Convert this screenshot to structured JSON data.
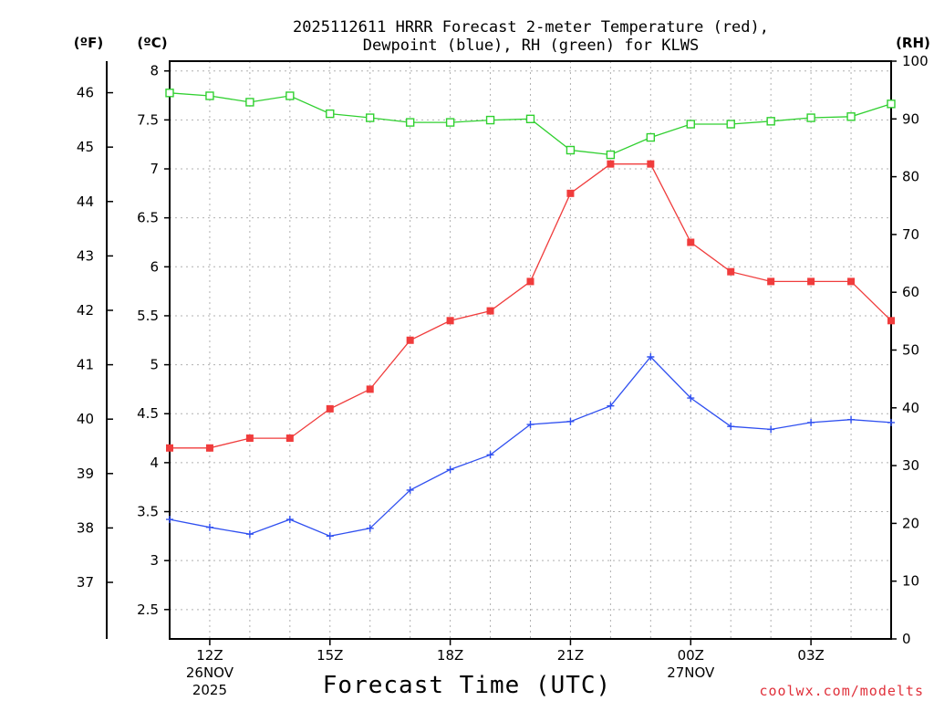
{
  "chart_data": {
    "type": "line",
    "title_line1": "2025112611 HRRR Forecast 2-meter Temperature (red),",
    "title_line2": "Dewpoint (blue), RH (green) for KLWS",
    "xlabel": "Forecast Time (UTC)",
    "unit_f": "(ºF)",
    "unit_c": "(ºC)",
    "unit_rh": "(RH)",
    "x_hours": [
      11,
      12,
      13,
      14,
      15,
      16,
      17,
      18,
      19,
      20,
      21,
      22,
      23,
      24,
      25,
      26,
      27,
      28,
      29
    ],
    "xlim": [
      11,
      29
    ],
    "x_ticks": [
      {
        "hour": 12,
        "label": "12Z",
        "date": "26NOV",
        "year": "2025"
      },
      {
        "hour": 15,
        "label": "15Z",
        "date": "",
        "year": ""
      },
      {
        "hour": 18,
        "label": "18Z",
        "date": "",
        "year": ""
      },
      {
        "hour": 21,
        "label": "21Z",
        "date": "",
        "year": ""
      },
      {
        "hour": 24,
        "label": "00Z",
        "date": "27NOV",
        "year": ""
      },
      {
        "hour": 27,
        "label": "03Z",
        "date": "",
        "year": ""
      }
    ],
    "ylim_c": [
      2.2,
      8.1
    ],
    "y_ticks_c": [
      "2.5",
      "3",
      "3.5",
      "4",
      "4.5",
      "5",
      "5.5",
      "6",
      "6.5",
      "7",
      "7.5",
      "8"
    ],
    "y_ticks_f": [
      "37",
      "38",
      "39",
      "40",
      "41",
      "42",
      "43",
      "44",
      "45",
      "46"
    ],
    "ylim_rh": [
      0,
      100
    ],
    "y_ticks_rh": [
      "0",
      "10",
      "20",
      "30",
      "40",
      "50",
      "60",
      "70",
      "80",
      "90",
      "100"
    ],
    "series": [
      {
        "name": "Temperature",
        "color": "#f03c3c",
        "marker": "filled-square",
        "values": [
          4.15,
          4.15,
          4.25,
          4.25,
          4.55,
          4.75,
          5.25,
          5.45,
          5.55,
          5.85,
          6.75,
          7.05,
          7.05,
          6.25,
          5.95,
          5.85,
          5.85,
          5.85,
          5.45
        ]
      },
      {
        "name": "Dewpoint",
        "color": "#3050f0",
        "marker": "plus",
        "values": [
          3.42,
          3.34,
          3.27,
          3.42,
          3.25,
          3.33,
          3.72,
          3.93,
          4.08,
          4.39,
          4.42,
          4.58,
          5.08,
          4.66,
          4.37,
          4.34,
          4.41,
          4.44,
          4.41
        ]
      },
      {
        "name": "RH",
        "color": "#30d030",
        "marker": "open-square",
        "axis": "rh",
        "values": [
          94.5,
          94.0,
          92.9,
          94.0,
          90.9,
          90.2,
          89.4,
          89.4,
          89.8,
          90.0,
          84.6,
          83.8,
          86.8,
          89.1,
          89.1,
          89.6,
          90.2,
          90.4,
          92.6
        ]
      }
    ]
  },
  "credit": "coolwx.com/modelts"
}
